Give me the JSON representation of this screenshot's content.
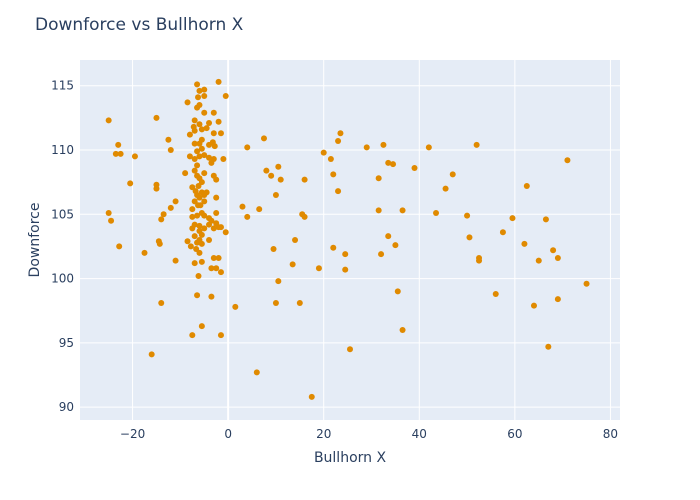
{
  "chart_data": {
    "type": "scatter",
    "title": "Downforce vs Bullhorn X",
    "xlabel": "Bullhorn X",
    "ylabel": "Downforce",
    "xlim": [
      -31,
      82
    ],
    "ylim": [
      89,
      117
    ],
    "xticks": [
      -20,
      0,
      20,
      40,
      60,
      80
    ],
    "yticks": [
      90,
      95,
      100,
      105,
      110,
      115
    ],
    "tick_labels": {
      "x": [
        "−20",
        "0",
        "20",
        "40",
        "60",
        "80"
      ],
      "y": [
        "90",
        "95",
        "100",
        "105",
        "110",
        "115"
      ]
    },
    "grid": true,
    "marker_color": "#e08a00",
    "plot_bg": "#e5ecf6",
    "points": [
      [
        -25,
        112.3
      ],
      [
        -23,
        110.4
      ],
      [
        -23.5,
        109.7
      ],
      [
        -22.5,
        109.7
      ],
      [
        -19.5,
        109.5
      ],
      [
        -25,
        105.1
      ],
      [
        -24.5,
        104.5
      ],
      [
        -22.8,
        102.5
      ],
      [
        -20.5,
        107.4
      ],
      [
        -15,
        112.5
      ],
      [
        -12.5,
        110.8
      ],
      [
        -12,
        110
      ],
      [
        -15,
        107.3
      ],
      [
        -15,
        107
      ],
      [
        -11,
        106
      ],
      [
        -12,
        105.5
      ],
      [
        -13.5,
        105
      ],
      [
        -14,
        104.6
      ],
      [
        -14.5,
        102.9
      ],
      [
        -14.3,
        102.7
      ],
      [
        -17.5,
        102
      ],
      [
        -11,
        101.4
      ],
      [
        -14,
        98.1
      ],
      [
        -16,
        94.1
      ],
      [
        -8.5,
        113.7
      ],
      [
        -7,
        112.3
      ],
      [
        -7.2,
        111.8
      ],
      [
        -8,
        111.2
      ],
      [
        -7,
        111.5
      ],
      [
        -6.5,
        115.1
      ],
      [
        -6,
        114.6
      ],
      [
        -5,
        114.7
      ],
      [
        -6.3,
        114.1
      ],
      [
        -5,
        114.2
      ],
      [
        -6,
        113.5
      ],
      [
        -6.5,
        113.3
      ],
      [
        -5,
        112.9
      ],
      [
        -3,
        112.9
      ],
      [
        -4,
        112.1
      ],
      [
        -6,
        112
      ],
      [
        -5.5,
        111.6
      ],
      [
        -4.5,
        111.7
      ],
      [
        -3,
        111.3
      ],
      [
        -2,
        112.2
      ],
      [
        -1.5,
        111.3
      ],
      [
        -2,
        115.3
      ],
      [
        -0.5,
        114.2
      ],
      [
        -5.5,
        110.8
      ],
      [
        -6,
        110.5
      ],
      [
        -7,
        110.5
      ],
      [
        -4,
        110.4
      ],
      [
        -3.2,
        110.6
      ],
      [
        -2.8,
        110.3
      ],
      [
        -5.5,
        110.1
      ],
      [
        -6.5,
        109.9
      ],
      [
        -6,
        109.5
      ],
      [
        -7,
        109.3
      ],
      [
        -8,
        109.5
      ],
      [
        -5,
        109.6
      ],
      [
        -4,
        109.4
      ],
      [
        -3,
        109.3
      ],
      [
        -3.5,
        109
      ],
      [
        -1,
        109.3
      ],
      [
        -6.5,
        108.8
      ],
      [
        -7,
        108.4
      ],
      [
        -6.5,
        108
      ],
      [
        -5,
        108.2
      ],
      [
        -9,
        108.2
      ],
      [
        -3,
        108
      ],
      [
        -2.5,
        107.7
      ],
      [
        -6,
        107.8
      ],
      [
        -5.5,
        107.5
      ],
      [
        -6.2,
        107.2
      ],
      [
        -7.5,
        107.1
      ],
      [
        -6.8,
        106.8
      ],
      [
        -5.5,
        106.7
      ],
      [
        -4.5,
        106.7
      ],
      [
        -6.5,
        106.5
      ],
      [
        -5,
        106.5
      ],
      [
        -6,
        106.3
      ],
      [
        -7,
        106
      ],
      [
        -5,
        106
      ],
      [
        -2.5,
        106.3
      ],
      [
        -6.3,
        105.7
      ],
      [
        -5.8,
        105.7
      ],
      [
        -7.5,
        105.4
      ],
      [
        -5.5,
        105.1
      ],
      [
        -6.5,
        104.9
      ],
      [
        -5,
        104.9
      ],
      [
        -7.5,
        104.8
      ],
      [
        -4,
        104.7
      ],
      [
        -3.5,
        104.5
      ],
      [
        -2.5,
        105.1
      ],
      [
        -7,
        104.2
      ],
      [
        -6,
        104.1
      ],
      [
        -5,
        103.9
      ],
      [
        -7.5,
        103.9
      ],
      [
        -4,
        104.2
      ],
      [
        -3,
        103.9
      ],
      [
        -2,
        104
      ],
      [
        -2.5,
        104.3
      ],
      [
        -1.5,
        104
      ],
      [
        -0.5,
        103.6
      ],
      [
        -6,
        103.7
      ],
      [
        -5.5,
        103.4
      ],
      [
        -7,
        103.3
      ],
      [
        -6,
        103
      ],
      [
        -4,
        103
      ],
      [
        -8.5,
        102.9
      ],
      [
        -6.5,
        102.8
      ],
      [
        -5.5,
        102.7
      ],
      [
        -6.7,
        102.3
      ],
      [
        -7.8,
        102.5
      ],
      [
        -6,
        102
      ],
      [
        -5.5,
        101.3
      ],
      [
        -7,
        101.2
      ],
      [
        -6.2,
        100.2
      ],
      [
        -3,
        101.6
      ],
      [
        -2,
        101.6
      ],
      [
        -2.5,
        100.8
      ],
      [
        -1.5,
        100.5
      ],
      [
        -3.5,
        100.8
      ],
      [
        -6.5,
        98.7
      ],
      [
        -3.5,
        98.6
      ],
      [
        -5.5,
        96.3
      ],
      [
        -7.5,
        95.6
      ],
      [
        -1.5,
        95.6
      ],
      [
        4,
        110.2
      ],
      [
        7.5,
        110.9
      ],
      [
        8,
        108.4
      ],
      [
        9,
        108
      ],
      [
        10.5,
        108.7
      ],
      [
        11,
        107.7
      ],
      [
        3,
        105.6
      ],
      [
        4,
        104.8
      ],
      [
        6.5,
        105.4
      ],
      [
        9.5,
        102.3
      ],
      [
        10,
        106.5
      ],
      [
        14,
        103
      ],
      [
        15.5,
        105
      ],
      [
        16,
        104.8
      ],
      [
        16,
        107.7
      ],
      [
        10.5,
        99.8
      ],
      [
        10,
        98.1
      ],
      [
        13.5,
        101.1
      ],
      [
        15,
        98.1
      ],
      [
        1.5,
        97.8
      ],
      [
        6,
        92.7
      ],
      [
        17.5,
        90.8
      ],
      [
        19,
        100.8
      ],
      [
        20,
        109.8
      ],
      [
        21.5,
        109.3
      ],
      [
        22,
        108.1
      ],
      [
        23,
        110.7
      ],
      [
        23.5,
        111.3
      ],
      [
        23,
        106.8
      ],
      [
        22,
        102.4
      ],
      [
        24.5,
        101.9
      ],
      [
        24.5,
        100.7
      ],
      [
        25.5,
        94.5
      ],
      [
        29,
        110.2
      ],
      [
        31.5,
        107.8
      ],
      [
        32.5,
        110.4
      ],
      [
        33.5,
        109
      ],
      [
        34.5,
        108.9
      ],
      [
        31.5,
        105.3
      ],
      [
        36.5,
        105.3
      ],
      [
        33.5,
        103.3
      ],
      [
        35,
        102.6
      ],
      [
        32,
        101.9
      ],
      [
        35.5,
        99
      ],
      [
        36.5,
        96
      ],
      [
        39,
        108.6
      ],
      [
        42,
        110.2
      ],
      [
        47,
        108.1
      ],
      [
        45.5,
        107
      ],
      [
        43.5,
        105.1
      ],
      [
        50,
        104.9
      ],
      [
        50.5,
        103.2
      ],
      [
        52,
        110.4
      ],
      [
        52.5,
        101.6
      ],
      [
        52.5,
        101.4
      ],
      [
        57.5,
        103.6
      ],
      [
        59.5,
        104.7
      ],
      [
        62,
        102.7
      ],
      [
        62.5,
        107.2
      ],
      [
        56,
        98.8
      ],
      [
        64,
        97.9
      ],
      [
        65,
        101.4
      ],
      [
        66.5,
        104.6
      ],
      [
        67,
        94.7
      ],
      [
        68,
        102.2
      ],
      [
        69,
        101.6
      ],
      [
        69,
        98.4
      ],
      [
        71,
        109.2
      ],
      [
        75,
        99.6
      ]
    ]
  }
}
